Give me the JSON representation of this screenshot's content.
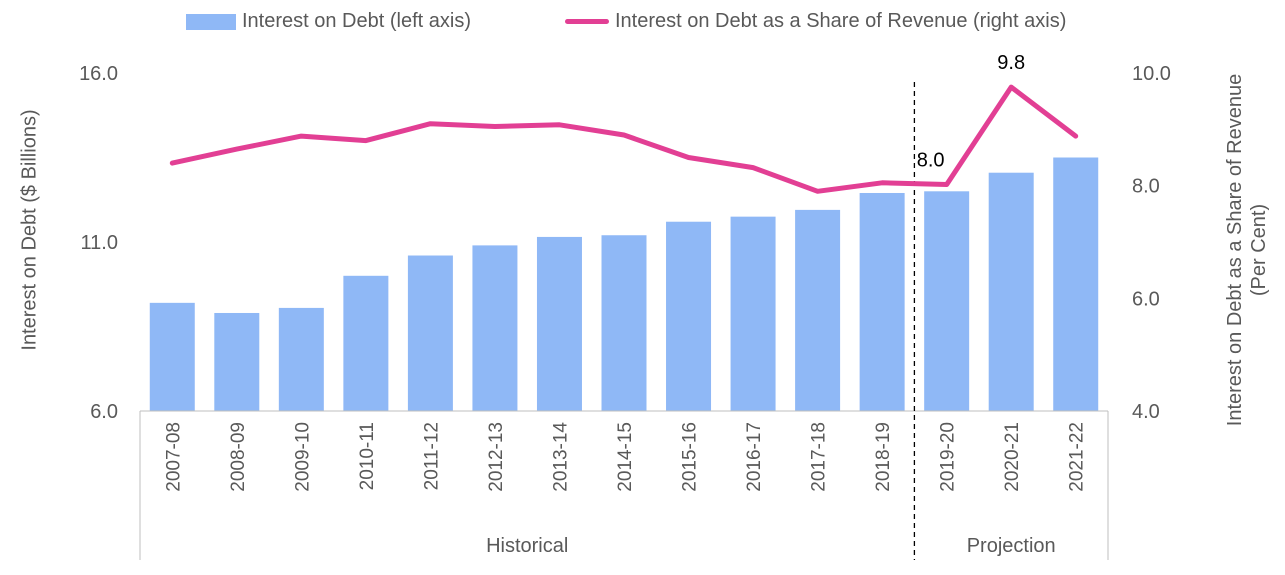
{
  "legend": {
    "bar_label": "Interest on Debt (left axis)",
    "line_label": "Interest on Debt as a Share of Revenue (right axis)"
  },
  "colors": {
    "bar": "#8fb8f6",
    "line": "#e23f94",
    "axis_text": "#595959",
    "axis_line": "#bfbfbf",
    "label_text": "#000000"
  },
  "chart_data": {
    "type": "bar",
    "categories": [
      "2007-08",
      "2008-09",
      "2009-10",
      "2010-11",
      "2011-12",
      "2012-13",
      "2013-14",
      "2014-15",
      "2015-16",
      "2016-17",
      "2017-18",
      "2018-19",
      "2019-20",
      "2020-21",
      "2021-22"
    ],
    "series": [
      {
        "name": "Interest on Debt (left axis)",
        "type": "bar",
        "axis": "left",
        "values": [
          9.2,
          8.9,
          9.05,
          10.0,
          10.6,
          10.9,
          11.15,
          11.2,
          11.6,
          11.75,
          11.95,
          12.45,
          12.5,
          13.05,
          13.5
        ]
      },
      {
        "name": "Interest on Debt as a Share of Revenue (right axis)",
        "type": "line",
        "axis": "right",
        "values": [
          8.4,
          8.65,
          8.88,
          8.8,
          9.1,
          9.05,
          9.08,
          8.9,
          8.5,
          8.32,
          7.9,
          8.05,
          8.02,
          9.75,
          8.88
        ]
      }
    ],
    "data_labels": [
      {
        "index": 12,
        "text": "8.0"
      },
      {
        "index": 13,
        "text": "9.8"
      }
    ],
    "left_axis": {
      "title": "Interest on Debt ($ Billions)",
      "ylim": [
        6.0,
        16.0
      ],
      "ticks": [
        6.0,
        11.0,
        16.0
      ],
      "tick_labels": [
        "6.0",
        "11.0",
        "16.0"
      ]
    },
    "right_axis": {
      "title_line1": "Interest on Debt as a Share of Revenue",
      "title_line2": "(Per Cent)",
      "ylim": [
        4.0,
        10.0
      ],
      "ticks": [
        4.0,
        6.0,
        8.0,
        10.0
      ],
      "tick_labels": [
        "4.0",
        "6.0",
        "8.0",
        "10.0"
      ]
    },
    "groups": [
      {
        "label": "Historical",
        "start": 0,
        "end": 11
      },
      {
        "label": "Projection",
        "start": 12,
        "end": 14
      }
    ],
    "divider_after_index": 11,
    "grid": false,
    "legend_position": "top"
  }
}
